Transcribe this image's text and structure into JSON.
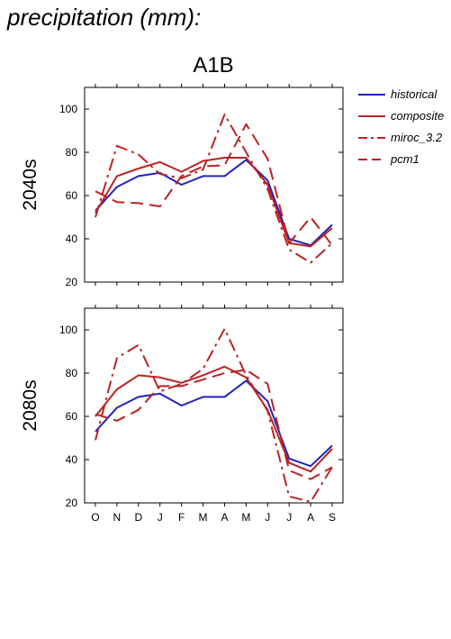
{
  "page_title": "precipitation (mm):",
  "colors": {
    "historical": "#2222bb",
    "composite": "#bb2222",
    "miroc_3.2": "#bb2222",
    "pcm1": "#bb2222"
  },
  "chart_data": {
    "type": "line",
    "scenario": "A1B",
    "xlabel": "",
    "ylabel": "",
    "months": [
      "O",
      "N",
      "D",
      "J",
      "F",
      "M",
      "A",
      "M",
      "J",
      "J",
      "A",
      "S"
    ],
    "ylim": [
      20,
      110
    ],
    "yticks": [
      20,
      40,
      60,
      80,
      100
    ],
    "legend": [
      "historical",
      "composite",
      "miroc_3.2",
      "pcm1"
    ],
    "legend_placement": "right",
    "grid": false,
    "panels": [
      {
        "label": "2040s",
        "series": [
          {
            "name": "historical",
            "style": "solid",
            "color": "#2222bb",
            "values": [
              53,
              64,
              69,
              70.5,
              65,
              69,
              69,
              76.5,
              67,
              40,
              37,
              46.5
            ]
          },
          {
            "name": "composite",
            "style": "solid",
            "color": "#bb2222",
            "values": [
              52,
              69,
              72.5,
              75.5,
              71,
              76,
              77.5,
              77.5,
              65,
              38,
              36.5,
              45
            ]
          },
          {
            "name": "miroc_3.2",
            "style": "dashdot",
            "color": "#bb2222",
            "values": [
              50,
              83,
              79,
              70,
              68,
              72,
              97.5,
              80,
              63,
              35,
              29,
              38
            ]
          },
          {
            "name": "pcm1",
            "style": "dashed",
            "color": "#bb2222",
            "values": [
              62,
              57,
              56.5,
              55,
              69,
              73.5,
              74,
              93,
              77,
              38,
              50,
              37
            ]
          }
        ]
      },
      {
        "label": "2080s",
        "series": [
          {
            "name": "historical",
            "style": "solid",
            "color": "#2222bb",
            "values": [
              53,
              64,
              69,
              70.5,
              65,
              69,
              69,
              76.5,
              67,
              40.5,
              37,
              46.5
            ]
          },
          {
            "name": "composite",
            "style": "solid",
            "color": "#bb2222",
            "values": [
              60,
              72.5,
              79,
              78,
              75.5,
              79,
              83,
              78,
              63,
              38.5,
              34.5,
              45
            ]
          },
          {
            "name": "miroc_3.2",
            "style": "dashdot",
            "color": "#bb2222",
            "values": [
              49,
              87,
              93,
              71.5,
              75,
              82,
              100.5,
              79,
              62.5,
              23,
              20.5,
              36.5
            ]
          },
          {
            "name": "pcm1",
            "style": "dashed",
            "color": "#bb2222",
            "values": [
              61,
              58,
              63,
              74,
              74,
              77,
              80,
              81.5,
              75,
              35,
              31,
              36.5
            ]
          }
        ]
      }
    ]
  }
}
